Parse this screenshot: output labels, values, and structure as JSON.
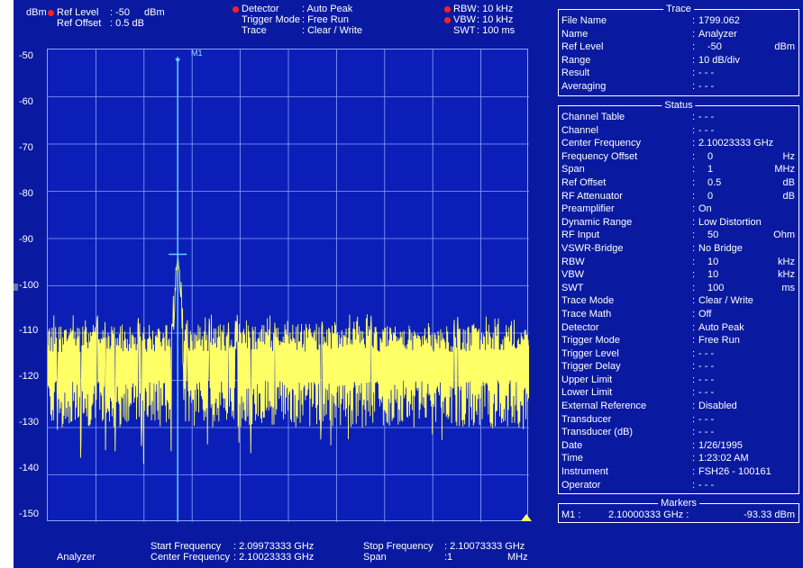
{
  "header": {
    "unit": "dBm",
    "ref_level_label": "Ref Level",
    "ref_level_value": ": -50",
    "ref_level_unit": "dBm",
    "ref_offset_label": "Ref Offset",
    "ref_offset_value": ":  0.5 dB",
    "detector_label": "Detector",
    "detector_value": ": Auto Peak",
    "trigger_mode_label": "Trigger Mode",
    "trigger_mode_value": ": Free Run",
    "trace_label": "Trace",
    "trace_value": ": Clear / Write",
    "rbw_label": "RBW",
    "rbw_value": ":   10 kHz",
    "vbw_label": "VBW",
    "vbw_value": ":   10 kHz",
    "swt_label": "SWT",
    "swt_value": ": 100 ms"
  },
  "plot": {
    "marker_label": "M1",
    "y_labels": [
      "-50",
      "-60",
      "-70",
      "-80",
      "-90",
      "-100",
      "-110",
      "-120",
      "-130",
      "-140",
      "-150"
    ]
  },
  "chart_data": {
    "type": "line",
    "ylabel": "dBm",
    "ylim": [
      -150,
      -50
    ],
    "xlim": [
      2.09973333,
      2.10073333
    ],
    "x_unit": "GHz",
    "grid": true,
    "noise_floor_range": [
      -130,
      -108
    ],
    "peak": {
      "x": 2.10000333,
      "y": -93.33
    },
    "trace_color": "#ffff66"
  },
  "footer": {
    "mode": "Analyzer",
    "start_freq_label": "Start Frequency",
    "start_freq_value": ": 2.09973333 GHz",
    "center_freq_label": "Center Frequency",
    "center_freq_value": ": 2.10023333 GHz",
    "stop_freq_label": "Stop Frequency",
    "stop_freq_value": ": 2.10073333 GHz",
    "span_label": "Span",
    "span_value": ":1",
    "span_unit": "MHz"
  },
  "trace_panel": {
    "title": "Trace",
    "rows": [
      {
        "k": "File Name",
        "v": "1799.062",
        "u": ""
      },
      {
        "k": "Name",
        "v": "Analyzer",
        "u": ""
      },
      {
        "k": "Ref Level",
        "v": "-50",
        "u": "dBm"
      },
      {
        "k": "Range",
        "v": "10 dB/div",
        "u": ""
      },
      {
        "k": "Result",
        "v": "- - -",
        "u": ""
      },
      {
        "k": "Averaging",
        "v": "- - -",
        "u": ""
      }
    ]
  },
  "status_panel": {
    "title": "Status",
    "rows": [
      {
        "k": "Channel Table",
        "v": "- - -",
        "u": ""
      },
      {
        "k": "Channel",
        "v": "- - -",
        "u": ""
      },
      {
        "k": "Center Frequency",
        "v": "2.10023333 GHz",
        "u": ""
      },
      {
        "k": "Frequency Offset",
        "v": "0",
        "u": "Hz"
      },
      {
        "k": "Span",
        "v": "1",
        "u": "MHz"
      },
      {
        "k": "Ref Offset",
        "v": "0.5",
        "u": "dB"
      },
      {
        "k": "RF Attenuator",
        "v": "0",
        "u": "dB"
      },
      {
        "k": "Preamplifier",
        "v": "On",
        "u": ""
      },
      {
        "k": "Dynamic Range",
        "v": "Low Distortion",
        "u": ""
      },
      {
        "k": "RF Input",
        "v": "50",
        "u": "Ohm"
      },
      {
        "k": "VSWR-Bridge",
        "v": "No Bridge",
        "u": ""
      },
      {
        "k": "RBW",
        "v": "10",
        "u": "kHz"
      },
      {
        "k": "VBW",
        "v": "10",
        "u": "kHz"
      },
      {
        "k": "SWT",
        "v": "100",
        "u": "ms"
      },
      {
        "k": "Trace Mode",
        "v": "Clear / Write",
        "u": ""
      },
      {
        "k": "Trace Math",
        "v": "Off",
        "u": ""
      },
      {
        "k": "Detector",
        "v": "Auto Peak",
        "u": ""
      },
      {
        "k": "Trigger Mode",
        "v": "Free Run",
        "u": ""
      },
      {
        "k": "Trigger Level",
        "v": "- - -",
        "u": ""
      },
      {
        "k": "Trigger Delay",
        "v": "- - -",
        "u": ""
      },
      {
        "k": "Upper Limit",
        "v": "- - -",
        "u": ""
      },
      {
        "k": "Lower Limit",
        "v": "- - -",
        "u": ""
      },
      {
        "k": "External Reference",
        "v": "Disabled",
        "u": ""
      },
      {
        "k": "Transducer",
        "v": "- - -",
        "u": ""
      },
      {
        "k": "Transducer (dB)",
        "v": "- - -",
        "u": ""
      },
      {
        "k": "Date",
        "v": "1/26/1995",
        "u": ""
      },
      {
        "k": "Time",
        "v": "1:23:02 AM",
        "u": ""
      },
      {
        "k": "Instrument",
        "v": "FSH26 - 100161",
        "u": ""
      },
      {
        "k": "Operator",
        "v": "- - -",
        "u": ""
      }
    ]
  },
  "markers_panel": {
    "title": "Markers",
    "marker": "M1 :",
    "freq": "2.10000333 GHz :",
    "level": "-93.33 dBm"
  },
  "colors": {
    "background": "#0a1aa0",
    "plot_bg": "#0b1fb8",
    "grid": "#8ea0ff",
    "trace": "#ffff66",
    "marker_line": "#66d0ff",
    "indicator": "#ff2020"
  }
}
